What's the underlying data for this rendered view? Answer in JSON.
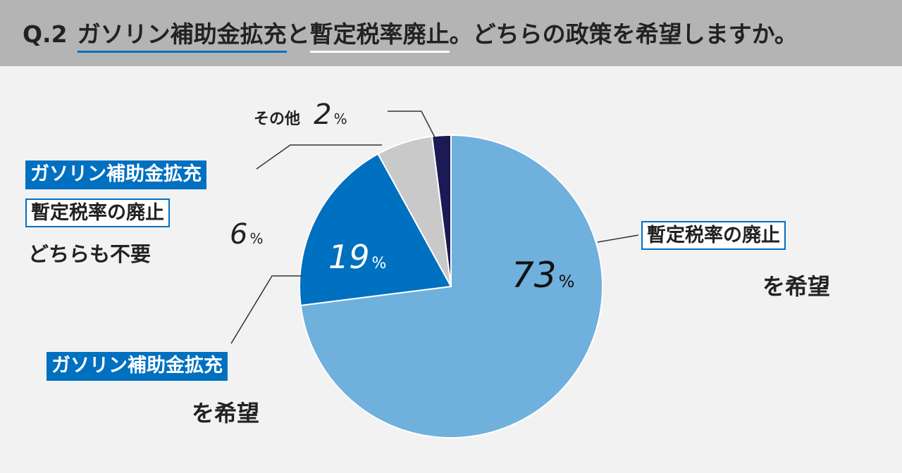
{
  "title": {
    "number": "Q.2",
    "part1": "ガソリン補助金拡充",
    "part2": "と",
    "part3": "暫定税率廃止",
    "part4": "。どちらの政策を希望しますか。"
  },
  "colors": {
    "header_bg": "#b4b4b4",
    "accent_blue": "#0070c0",
    "light_blue": "#6fb0dc",
    "gray": "#c9c9c9",
    "navy": "#1b1a55"
  },
  "chart_data": {
    "type": "pie",
    "start": "12 o'clock",
    "direction": "clockwise",
    "slices": [
      {
        "key": "abolish",
        "value": 73,
        "color": "#6fb0dc"
      },
      {
        "key": "subsidy",
        "value": 19,
        "color": "#0070c0"
      },
      {
        "key": "neither",
        "value": 6,
        "color": "#c9c9c9"
      },
      {
        "key": "other",
        "value": 2,
        "color": "#1b1a55"
      }
    ]
  },
  "labels": {
    "abolish": {
      "box": "暫定税率の廃止",
      "line2": "を希望",
      "pct": "73",
      "unit": "%"
    },
    "subsidy": {
      "box": "ガソリン補助金拡充",
      "line2": "を希望",
      "pct": "19",
      "unit": "%"
    },
    "neither": {
      "box1": "ガソリン補助金拡充",
      "box2": "暫定税率の廃止",
      "line3": "どちらも不要",
      "pct": "6",
      "unit": "%"
    },
    "other": {
      "text": "その他",
      "pct": "2",
      "unit": "%"
    }
  }
}
